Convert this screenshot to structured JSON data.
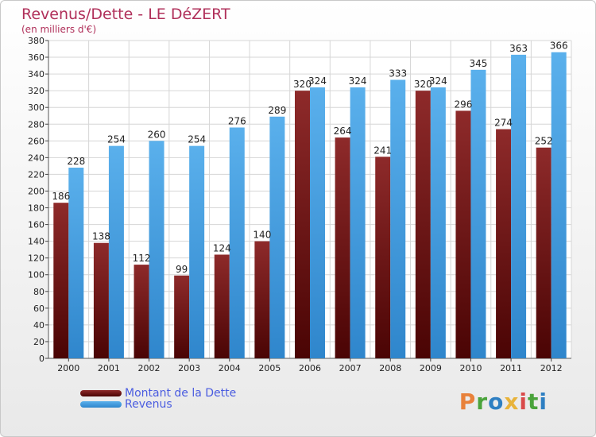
{
  "colors": {
    "dette": "#8b1c1c",
    "revenus": "#3a9de2",
    "title": "#b0305a",
    "legend_text": "#4a5ce0"
  },
  "logo": {
    "text": "Proxiti"
  },
  "chart_data": {
    "type": "bar",
    "title": "Revenus/Dette - LE DéZERT",
    "subtitle": "(en milliers d'€)",
    "xlabel": "",
    "ylabel": "",
    "ylim": [
      0,
      380
    ],
    "ytick_step": 20,
    "grid": true,
    "legend_placement": "bottom-left",
    "categories": [
      "2000",
      "2001",
      "2002",
      "2003",
      "2004",
      "2005",
      "2006",
      "2007",
      "2008",
      "2009",
      "2010",
      "2011",
      "2012"
    ],
    "series": [
      {
        "name": "Montant de la Dette",
        "values": [
          186,
          138,
          112,
          99,
          124,
          140,
          320,
          264,
          241,
          320,
          296,
          274,
          252
        ]
      },
      {
        "name": "Revenus",
        "values": [
          228,
          254,
          260,
          254,
          276,
          289,
          324,
          324,
          333,
          324,
          345,
          363,
          366
        ]
      }
    ]
  }
}
